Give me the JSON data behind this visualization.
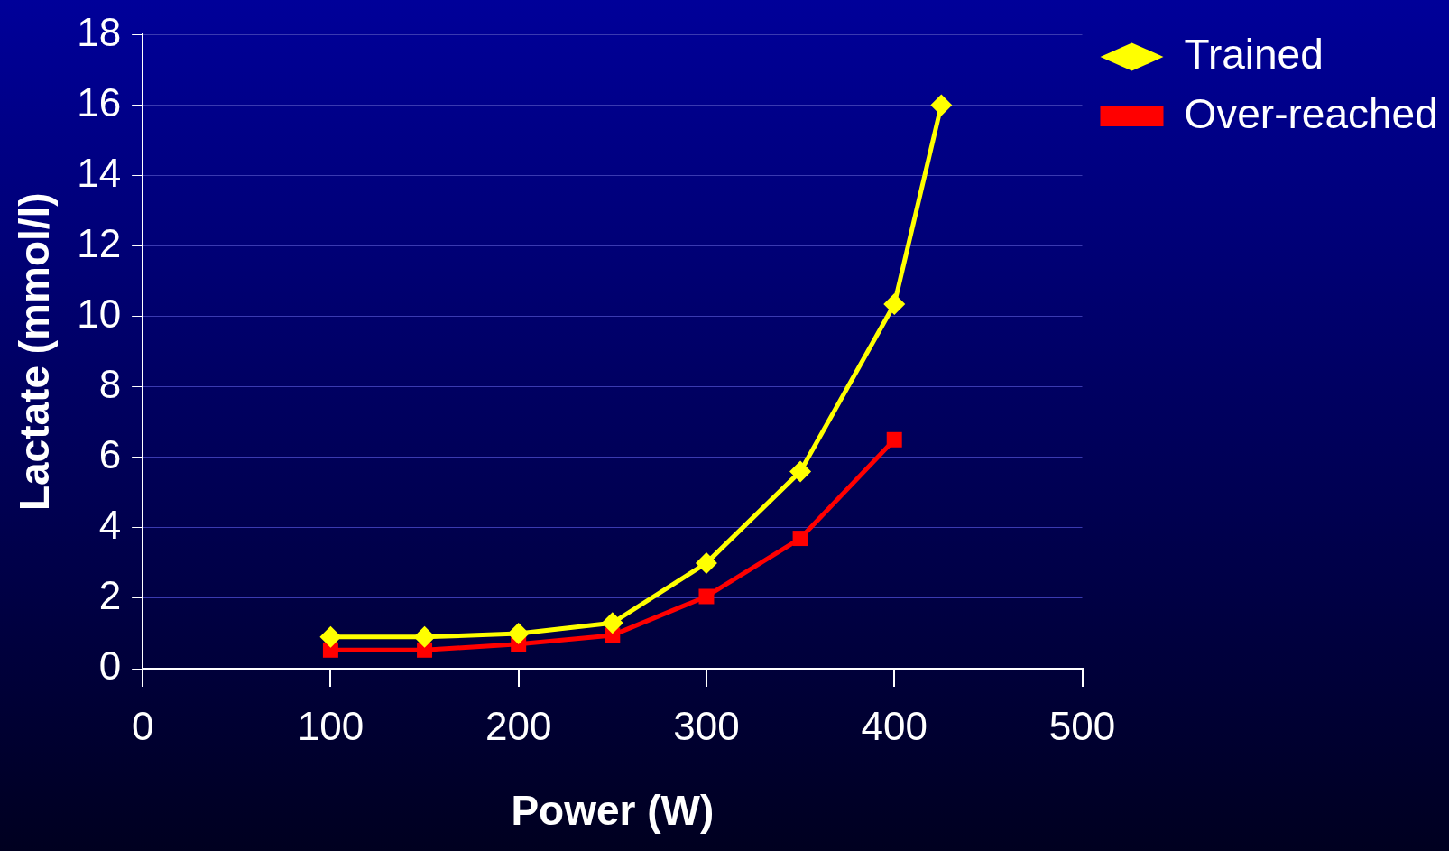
{
  "chart_data": {
    "type": "line",
    "xlabel": "Power (W)",
    "ylabel": "Lactate (mmol/l)",
    "series": [
      {
        "name": "Trained",
        "color": "#ffff00",
        "marker": "diamond",
        "x": [
          100,
          150,
          200,
          250,
          300,
          350,
          400,
          425
        ],
        "values": [
          0.9,
          0.9,
          1.0,
          1.3,
          3.0,
          5.6,
          10.35,
          16.0
        ]
      },
      {
        "name": "Over-reached",
        "color": "#ff0000",
        "marker": "square",
        "x": [
          100,
          150,
          200,
          250,
          300,
          350,
          400
        ],
        "values": [
          0.53,
          0.53,
          0.7,
          0.95,
          2.05,
          3.7,
          6.5
        ]
      }
    ],
    "xlim": [
      0,
      500
    ],
    "xticks": [
      0,
      100,
      200,
      300,
      400,
      500
    ],
    "ylim": [
      0,
      18
    ],
    "yticks": [
      0,
      2,
      4,
      6,
      8,
      10,
      12,
      14,
      16,
      18
    ],
    "grid": "y",
    "legend": "top right",
    "line_style": "solid"
  }
}
